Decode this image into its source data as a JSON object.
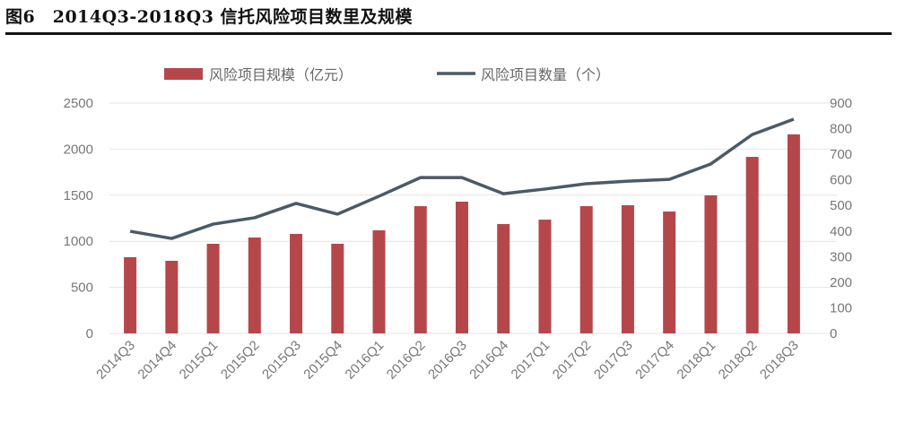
{
  "title": "图6　2014Q3-2018Q3 信托风险项目数里及规模",
  "chart_data": {
    "type": "bar+line",
    "title": "图6　2014Q3-2018Q3 信托风险项目数里及规模",
    "categories": [
      "2014Q3",
      "2014Q4",
      "2015Q1",
      "2015Q2",
      "2015Q3",
      "2015Q4",
      "2016Q1",
      "2016Q2",
      "2016Q3",
      "2016Q4",
      "2017Q1",
      "2017Q2",
      "2017Q3",
      "2017Q4",
      "2018Q1",
      "2018Q2",
      "2018Q3"
    ],
    "series": [
      {
        "name": "风险项目规模（亿元）",
        "type": "bar",
        "axis": "left",
        "color": "#b5474b",
        "values": [
          827,
          788,
          973,
          1041,
          1080,
          973,
          1119,
          1381,
          1430,
          1187,
          1235,
          1381,
          1391,
          1323,
          1498,
          1916,
          2160
        ]
      },
      {
        "name": "风险项目数量（个）",
        "type": "line",
        "axis": "right",
        "color": "#4a5a66",
        "values": [
          399,
          371,
          427,
          452,
          508,
          466,
          536,
          609,
          609,
          546,
          564,
          585,
          595,
          602,
          662,
          777,
          837
        ]
      }
    ],
    "y_left": {
      "range": [
        0,
        2500
      ],
      "ticks": [
        0,
        500,
        1000,
        1500,
        2000,
        2500
      ]
    },
    "y_right": {
      "range": [
        0,
        900
      ],
      "ticks": [
        0,
        100,
        200,
        300,
        400,
        500,
        600,
        700,
        800,
        900
      ]
    },
    "grid": true,
    "legend_position": "top"
  }
}
